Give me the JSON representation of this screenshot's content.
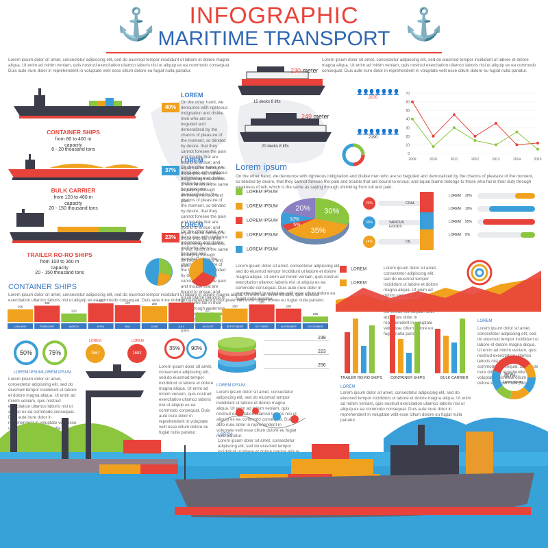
{
  "header": {
    "title": "INFOGRAPHIC",
    "subtitle": "MARITIME TRANSPORT"
  },
  "intro_text": "Lorem ipsum dolor sit amet, consectetur adipiscing elit, sed do eiusmod tempor incididunt ut labore et dolore magna aliqua. Ut enim ad minim veniam, quis nostrud exercitation ullamco laboris nisi ut aliquip ex ea commodo consequat. Duis aute irure dolor in reprehenderit in voluptate velit esse cillum dolore eu fugiat nulla pariatur.",
  "ships": [
    {
      "lorem": "LOREM",
      "pct": "40%",
      "name": "CONTAINER SHIPS",
      "size": "from 80 to 400 m",
      "cap_label": "capacity",
      "capacity": "8 - 20 thousand tons",
      "color": "#f0a21e"
    },
    {
      "lorem": "LOREM",
      "pct": "37%",
      "name": "BULK CARRIER",
      "size": "from 120 to 460 m",
      "cap_label": "capacity",
      "capacity": "20 - 150 thousand tons",
      "color": "#3a9fd8"
    },
    {
      "lorem": "LOREM",
      "pct": "23%",
      "name": "TRAILER RO-RO SHIPS",
      "size": "from 100 to 360 m",
      "cap_label": "capacity",
      "capacity": "20 - 150 thousand tons",
      "color": "#e8433a"
    }
  ],
  "cruise": [
    {
      "length": "230",
      "unit": "meter",
      "caption": "15 decks 8 lifts"
    },
    {
      "length": "249",
      "unit": "meter",
      "caption": "20 decks 8 lifts"
    }
  ],
  "people_stats": [
    "2070",
    "2190"
  ],
  "lorem_ipsum_heading": "Lorem ipsum",
  "lorem_ipsum_text": "On the other hand, we denounce with righteous indignation and dislike men who are so beguiled and demoralized by the charms of pleasure of the moment, so blinded by desire, that they cannot foresee the pain and trouble that are bound to ensue; and equal blame belongs to those who fail in their duty through weakness of will, which is the same as saying through shrinking from toil and pain.",
  "pie_legend": [
    {
      "label": "LOREM IPSUM",
      "color": "#8cc63f"
    },
    {
      "label": "LOREM IPSUM",
      "color": "#f0a21e"
    },
    {
      "label": "LOREM IPSUM",
      "color": "#e8433a"
    },
    {
      "label": "LOREM IPSUM",
      "color": "#f0a21e"
    },
    {
      "label": "LOREM IPSUM",
      "color": "#3a9fd8"
    }
  ],
  "pie_3d": {
    "slices": [
      {
        "label": "30%",
        "value": 30,
        "color": "#8cc63f"
      },
      {
        "label": "35%",
        "value": 35,
        "color": "#f0a21e"
      },
      {
        "label": "5%",
        "value": 5,
        "color": "#e8433a"
      },
      {
        "label": "10%",
        "value": 10,
        "color": "#3a9fd8"
      },
      {
        "label": "20%",
        "value": 20,
        "color": "#8a7fc2"
      }
    ]
  },
  "cargo_rows": [
    {
      "pct": "23%",
      "label": "COAL",
      "color": "#e8433a"
    },
    {
      "pct": "30%",
      "label": "VARIOUS GOODS",
      "color": "#3a9fd8"
    },
    {
      "pct": "14%",
      "label": "OIL",
      "color": "#f0a21e"
    }
  ],
  "right_bars": [
    {
      "label": "LOREM",
      "pct": "20%",
      "fill": 0.35,
      "color": "#f0a21e"
    },
    {
      "label": "LOREM",
      "pct": "10%",
      "fill": 0.8,
      "color": "#3a9fd8"
    },
    {
      "label": "LOREM",
      "pct": "55%",
      "fill": 0.9,
      "color": "#e8433a"
    },
    {
      "label": "LOREM",
      "pct": "5%",
      "fill": 0.25,
      "color": "#8cc63f"
    }
  ],
  "line_chart": {
    "type": "line",
    "x": [
      "2009",
      "2010",
      "2011",
      "2012",
      "2013",
      "2014",
      "2015"
    ],
    "ylim": [
      0,
      70
    ],
    "yticks": [
      "0",
      "10",
      "20",
      "30",
      "40",
      "50",
      "60",
      "70"
    ],
    "series": [
      {
        "values": [
          60,
          20,
          45,
          20,
          35,
          10,
          12
        ],
        "color": "#e8433a"
      },
      {
        "values": [
          40,
          8,
          30,
          15,
          10,
          25,
          5
        ],
        "color": "#8cc63f"
      }
    ]
  },
  "area_chart_legend": [
    {
      "label": "LOREM",
      "color": "#e8433a"
    },
    {
      "label": "LOREM",
      "color": "#f0a21e"
    }
  ],
  "container_ships_heading": "CONTAINER SHIPS",
  "monthly_chart": {
    "type": "bar",
    "categories": [
      "JANUARY",
      "FEBRUARY",
      "MARCH",
      "APRIL",
      "MAY",
      "JUNE",
      "JULY",
      "AUGUST",
      "SEPTEMBER",
      "OCTOBER",
      "NOVEMBER",
      "DECEMBER"
    ],
    "values": [
      255,
      285,
      220,
      305,
      290,
      280,
      310,
      227,
      260,
      295,
      260,
      195
    ],
    "colors": [
      "#f0a21e",
      "#e8433a",
      "#8cc63f",
      "#e8433a",
      "#e8433a",
      "#f0a21e",
      "#e8433a",
      "#8cc63f",
      "#f0a21e",
      "#e8433a",
      "#e8433a",
      "#8cc63f"
    ]
  },
  "ring_stats": [
    {
      "value": "50%",
      "caption": "LOREM IPSUM",
      "color": "#3a9fd8"
    },
    {
      "value": "75%",
      "caption": "LOREM IPSUM",
      "color": "#8cc63f"
    }
  ],
  "circle_stats": [
    {
      "label": "LOREM",
      "value": "1567",
      "color": "#f0a21e"
    },
    {
      "label": "LOREM",
      "value": "1682",
      "color": "#e8433a"
    }
  ],
  "small_rings": [
    {
      "value": "35%",
      "color": "#e8433a"
    },
    {
      "value": "90%",
      "color": "#3a9fd8"
    }
  ],
  "stack_values": [
    "238",
    "223",
    "256"
  ],
  "stack_caption": "LOREM IPSUM",
  "grouped_bars": {
    "type": "bar",
    "groups": [
      "TRAILER RO-RO SHIPS",
      "CONTAINER SHIPS",
      "BULK CARRIER"
    ]
  },
  "donut": {
    "center_value": "80%",
    "center_label": "Lorem ipsum",
    "segments": [
      "10%",
      "15%",
      "10%",
      "15%",
      "40%",
      "10%"
    ]
  },
  "bottom_lorem": "LOREM",
  "right_lorem": "LOREM"
}
